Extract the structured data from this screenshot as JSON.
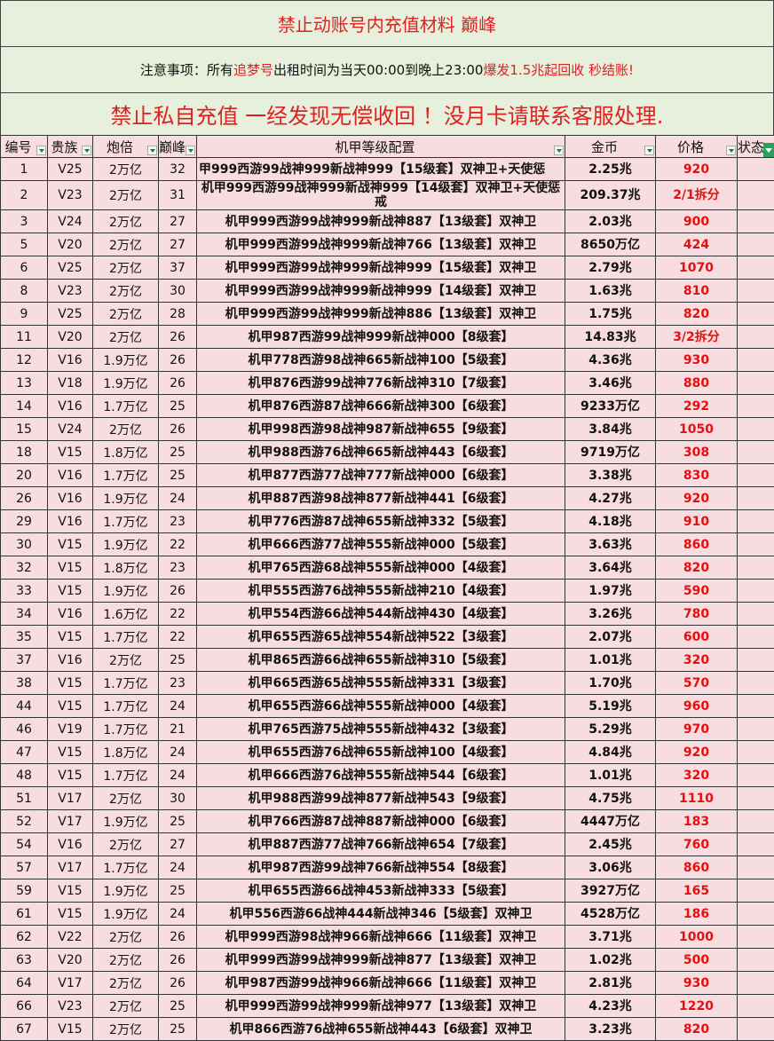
{
  "banner": {
    "title": "禁止动账号内充值材料  巅峰",
    "notice_prefix": "注意事项：所有",
    "notice_highlight": "追梦号",
    "notice_mid": "出租时间为当天00:00到晚上23:00 ",
    "notice_red": "爆发1.5兆起回收 秒结账!",
    "warning": "禁止私自充值 一经发现无偿收回 ！没月卡请联系客服处理."
  },
  "colors": {
    "header_bg": "#e6f0dc",
    "row_bg": "#f8dde0",
    "accent_red": "#e02020",
    "filter_green": "#2e9e5e"
  },
  "columns": [
    "编号",
    "贵族",
    "炮倍",
    "巅峰",
    "机甲等级配置",
    "金币",
    "价格",
    "状态"
  ],
  "rows": [
    [
      "1",
      "V25",
      "2万亿",
      "32",
      "甲999西游99战神999新战神999【15级套】双神卫+天使惩",
      "2.25兆",
      "920"
    ],
    [
      "2",
      "V23",
      "2万亿",
      "31",
      "机甲999西游99战神999新战神999【14级套】双神卫+天使惩戒",
      "209.37兆",
      "2/1拆分"
    ],
    [
      "3",
      "V24",
      "2万亿",
      "27",
      "机甲999西游99战神999新战神887【13级套】双神卫",
      "2.03兆",
      "900"
    ],
    [
      "5",
      "V20",
      "2万亿",
      "27",
      "机甲999西游99战神999新战神766【13级套】双神卫",
      "8650万亿",
      "424"
    ],
    [
      "6",
      "V25",
      "2万亿",
      "37",
      "机甲999西游99战神999新战神999【15级套】双神卫",
      "2.79兆",
      "1070"
    ],
    [
      "8",
      "V23",
      "2万亿",
      "30",
      "机甲999西游99战神999新战神999【14级套】双神卫",
      "1.63兆",
      "810"
    ],
    [
      "9",
      "V25",
      "2万亿",
      "28",
      "机甲999西游99战神999新战神886【13级套】双神卫",
      "1.75兆",
      "820"
    ],
    [
      "11",
      "V20",
      "2万亿",
      "26",
      "机甲987西游99战神999新战神000【8级套】",
      "14.83兆",
      "3/2拆分"
    ],
    [
      "12",
      "V16",
      "1.9万亿",
      "26",
      "机甲778西游98战神665新战神100【5级套】",
      "4.36兆",
      "930"
    ],
    [
      "13",
      "V18",
      "1.9万亿",
      "26",
      "机甲876西游99战神776新战神310【7级套】",
      "3.46兆",
      "880"
    ],
    [
      "14",
      "V16",
      "1.7万亿",
      "25",
      "机甲876西游87战神666新战神300【6级套】",
      "9233万亿",
      "292"
    ],
    [
      "15",
      "V24",
      "2万亿",
      "26",
      "机甲998西游98战神987新战神655【9级套】",
      "3.84兆",
      "1050"
    ],
    [
      "18",
      "V15",
      "1.8万亿",
      "25",
      "机甲988西游76战神665新战神443【6级套】",
      "9719万亿",
      "308"
    ],
    [
      "20",
      "V16",
      "1.7万亿",
      "25",
      "机甲877西游77战神777新战神000【6级套】",
      "3.38兆",
      "830"
    ],
    [
      "26",
      "V16",
      "1.9万亿",
      "24",
      "机甲887西游98战神877新战神441【6级套】",
      "4.27兆",
      "920"
    ],
    [
      "29",
      "V16",
      "1.7万亿",
      "23",
      "机甲776西游87战神655新战神332【5级套】",
      "4.18兆",
      "910"
    ],
    [
      "30",
      "V15",
      "1.9万亿",
      "22",
      "机甲666西游77战神555新战神000【5级套】",
      "3.63兆",
      "860"
    ],
    [
      "32",
      "V15",
      "1.8万亿",
      "23",
      "机甲765西游68战神555新战神000【4级套】",
      "3.64兆",
      "820"
    ],
    [
      "33",
      "V15",
      "1.9万亿",
      "26",
      "机甲555西游76战神555新战神210【4级套】",
      "1.97兆",
      "590"
    ],
    [
      "34",
      "V16",
      "1.6万亿",
      "22",
      "机甲554西游66战神544新战神430【4级套】",
      "3.26兆",
      "780"
    ],
    [
      "35",
      "V15",
      "1.7万亿",
      "22",
      "机甲655西游65战神554新战神522【3级套】",
      "2.07兆",
      "600"
    ],
    [
      "37",
      "V16",
      "2万亿",
      "25",
      "机甲865西游66战神655新战神310【5级套】",
      "1.01兆",
      "320"
    ],
    [
      "38",
      "V15",
      "1.7万亿",
      "23",
      "机甲665西游65战神555新战神331【3级套】",
      "1.70兆",
      "570"
    ],
    [
      "44",
      "V15",
      "1.7万亿",
      "24",
      "机甲655西游66战神555新战神000【4级套】",
      "5.19兆",
      "960"
    ],
    [
      "46",
      "V19",
      "1.7万亿",
      "21",
      "机甲765西游75战神555新战神432【3级套】",
      "5.29兆",
      "970"
    ],
    [
      "47",
      "V15",
      "1.8万亿",
      "24",
      "机甲655西游76战神655新战神100【4级套】",
      "4.84兆",
      "920"
    ],
    [
      "48",
      "V15",
      "1.7万亿",
      "24",
      "机甲666西游76战神555新战神544【6级套】",
      "1.01兆",
      "320"
    ],
    [
      "51",
      "V17",
      "2万亿",
      "30",
      "机甲988西游99战神877新战神543【9级套】",
      "4.75兆",
      "1110"
    ],
    [
      "52",
      "V17",
      "1.9万亿",
      "25",
      "机甲766西游87战神887新战神000【6级套】",
      "4447万亿",
      "183"
    ],
    [
      "54",
      "V16",
      "2万亿",
      "27",
      "机甲887西游77战神766新战神654【7级套】",
      "2.45兆",
      "760"
    ],
    [
      "57",
      "V17",
      "1.7万亿",
      "24",
      "机甲987西游99战神766新战神554【8级套】",
      "3.06兆",
      "860"
    ],
    [
      "59",
      "V15",
      "1.9万亿",
      "25",
      "机甲655西游66战神453新战神333【5级套】",
      "3927万亿",
      "165"
    ],
    [
      "61",
      "V15",
      "1.9万亿",
      "24",
      "机甲556西游66战神444新战神346【5级套】双神卫",
      "4528万亿",
      "186"
    ],
    [
      "62",
      "V22",
      "2万亿",
      "26",
      "机甲999西游98战神966新战神666【11级套】双神卫",
      "3.71兆",
      "1000"
    ],
    [
      "63",
      "V20",
      "2万亿",
      "26",
      "机甲999西游99战神999新战神877【13级套】双神卫",
      "1.02兆",
      "500"
    ],
    [
      "64",
      "V17",
      "2万亿",
      "26",
      "机甲987西游99战神966新战神666【11级套】双神卫",
      "2.81兆",
      "930"
    ],
    [
      "66",
      "V23",
      "2万亿",
      "25",
      "机甲999西游99战神999新战神977【13级套】双神卫",
      "4.23兆",
      "1220"
    ],
    [
      "67",
      "V15",
      "2万亿",
      "25",
      "机甲866西游76战神655新战神443【6级套】双神卫",
      "3.23兆",
      "820"
    ]
  ]
}
